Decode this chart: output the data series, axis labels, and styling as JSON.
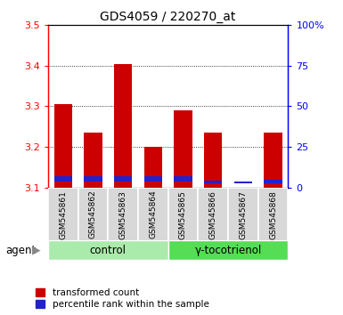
{
  "title": "GDS4059 / 220270_at",
  "samples": [
    "GSM545861",
    "GSM545862",
    "GSM545863",
    "GSM545864",
    "GSM545865",
    "GSM545866",
    "GSM545867",
    "GSM545868"
  ],
  "red_values": [
    3.305,
    3.235,
    3.405,
    3.2,
    3.29,
    3.235,
    3.1,
    3.235
  ],
  "blue_values": [
    3.115,
    3.115,
    3.115,
    3.115,
    3.115,
    3.11,
    3.11,
    3.11
  ],
  "blue_heights": [
    0.012,
    0.012,
    0.012,
    0.012,
    0.012,
    0.007,
    0.004,
    0.01
  ],
  "ylim": [
    3.1,
    3.5
  ],
  "yticks": [
    3.1,
    3.2,
    3.3,
    3.4,
    3.5
  ],
  "y2ticks": [
    0,
    25,
    50,
    75,
    100
  ],
  "y2labels": [
    "0",
    "25",
    "50",
    "75",
    "100%"
  ],
  "bar_width": 0.6,
  "red_color": "#CC0000",
  "blue_color": "#2222CC",
  "left_tick_color": "red",
  "right_tick_color": "blue",
  "agent_label": "agent",
  "legend_red": "transformed count",
  "legend_blue": "percentile rank within the sample",
  "sample_bg_color": "#D8D8D8",
  "control_color": "#AAEAAA",
  "gamma_color": "#55DD55",
  "bar_bottom": 3.1,
  "control_label": "control",
  "gamma_label": "γ-tocotrienol",
  "n_control": 4,
  "n_gamma": 4
}
